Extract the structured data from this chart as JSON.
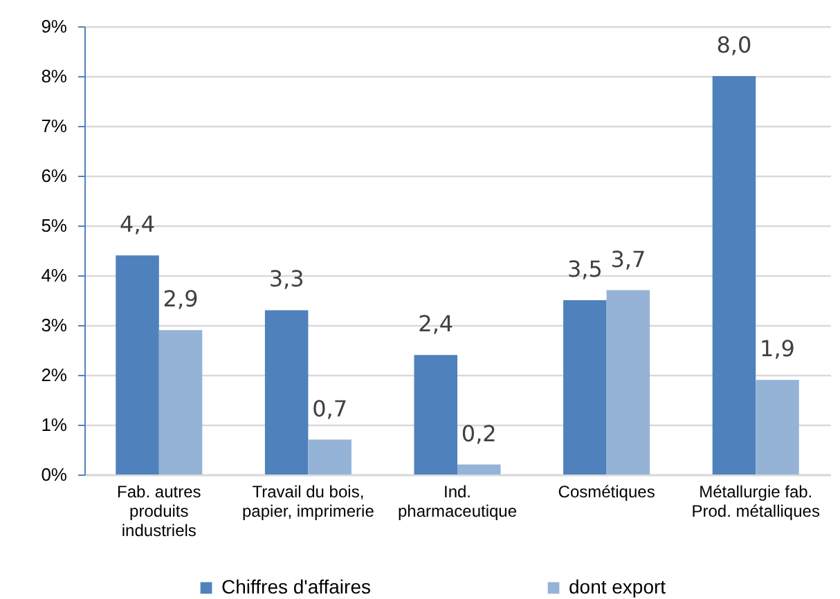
{
  "chart_data": {
    "type": "bar",
    "categories": [
      "Fab. autres produits industriels",
      "Travail du bois, papier, imprimerie",
      "Ind. pharmaceutique",
      "Cosmétiques",
      "Métallurgie fab. Prod. métalliques"
    ],
    "series": [
      {
        "name": "Chiffres d'affaires",
        "color": "#4f81bd",
        "values": [
          4.4,
          3.3,
          2.4,
          3.5,
          8.0
        ],
        "value_labels": [
          "4,4",
          "3,3",
          "2,4",
          "3,5",
          "8,0"
        ]
      },
      {
        "name": "dont export",
        "color": "#95b3d7",
        "values": [
          2.9,
          0.7,
          0.2,
          3.7,
          1.9
        ],
        "value_labels": [
          "2,9",
          "0,7",
          "0,2",
          "3,7",
          "1,9"
        ]
      }
    ],
    "ylim": [
      0,
      9
    ],
    "yticks": [
      {
        "value": 0,
        "label": "0%"
      },
      {
        "value": 1,
        "label": "1%"
      },
      {
        "value": 2,
        "label": "2%"
      },
      {
        "value": 3,
        "label": "3%"
      },
      {
        "value": 4,
        "label": "4%"
      },
      {
        "value": 5,
        "label": "5%"
      },
      {
        "value": 6,
        "label": "6%"
      },
      {
        "value": 7,
        "label": "7%"
      },
      {
        "value": 8,
        "label": "8%"
      },
      {
        "value": 9,
        "label": "9%"
      }
    ],
    "grid": "y",
    "legend": "bottom"
  }
}
